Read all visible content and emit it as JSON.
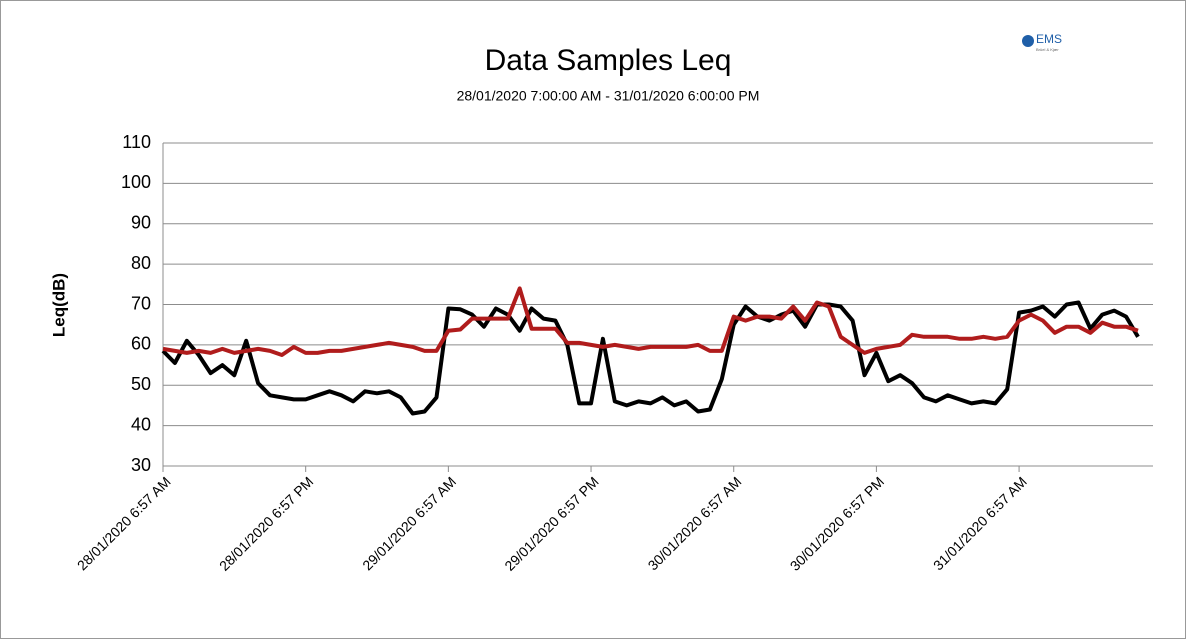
{
  "chart_data": {
    "type": "line",
    "title": "Data Samples Leq",
    "subtitle": "28/01/2020 7:00:00 AM - 31/01/2020 6:00:00 PM",
    "logo": "EMS",
    "logo_sub": "Brüel & Kjær",
    "y_label": "Leq(dB)",
    "categories": [
      "28/01/2020 6:57 AM",
      null,
      null,
      null,
      null,
      null,
      null,
      null,
      null,
      null,
      null,
      null,
      "28/01/2020 6:57 PM",
      null,
      null,
      null,
      null,
      null,
      null,
      null,
      null,
      null,
      null,
      null,
      "29/01/2020 6:57 AM",
      null,
      null,
      null,
      null,
      null,
      null,
      null,
      null,
      null,
      null,
      null,
      "29/01/2020 6:57 PM",
      null,
      null,
      null,
      null,
      null,
      null,
      null,
      null,
      null,
      null,
      null,
      "30/01/2020 6:57 AM",
      null,
      null,
      null,
      null,
      null,
      null,
      null,
      null,
      null,
      null,
      null,
      "30/01/2020 6:57 PM",
      null,
      null,
      null,
      null,
      null,
      null,
      null,
      null,
      null,
      null,
      null,
      "31/01/2020 6:57 AM",
      null,
      null,
      null,
      null,
      null,
      null,
      null,
      null,
      null,
      null
    ],
    "series": [
      {
        "color": "#000000",
        "values": [
          58.5,
          55.5,
          61,
          57.5,
          53,
          55,
          52.5,
          61,
          50.5,
          47.5,
          47,
          46.5,
          46.5,
          47.5,
          48.5,
          47.5,
          46,
          48.5,
          48,
          48.5,
          47,
          43,
          43.5,
          47,
          69,
          68.8,
          67.5,
          64.5,
          69,
          67.5,
          63.5,
          69,
          66.5,
          66,
          60,
          45.5,
          45.5,
          61.5,
          46,
          45,
          46,
          45.5,
          47,
          45,
          46,
          43.5,
          44,
          51.5,
          65,
          69.5,
          67,
          66,
          67.5,
          68.5,
          64.5,
          70,
          70,
          69.5,
          66,
          52.5,
          58,
          51,
          52.5,
          50.5,
          47,
          46,
          47.5,
          46.5,
          45.5,
          46,
          45.5,
          49,
          68,
          68.5,
          69.5,
          67,
          70,
          70.5,
          64,
          67.5,
          68.5,
          67,
          62
        ]
      },
      {
        "color": "#b01c1c",
        "values": [
          59,
          58.5,
          58,
          58.5,
          58,
          59,
          58,
          58.5,
          59,
          58.5,
          57.5,
          59.5,
          58,
          58,
          58.5,
          58.5,
          59,
          59.5,
          60,
          60.5,
          60,
          59.5,
          58.5,
          58.5,
          63.5,
          63.8,
          66.5,
          66.5,
          66.5,
          66.5,
          74,
          64,
          64,
          64,
          60.5,
          60.5,
          60,
          59.5,
          60,
          59.5,
          59,
          59.5,
          59.5,
          59.5,
          59.5,
          60,
          58.5,
          58.5,
          67,
          66,
          67,
          67,
          66.5,
          69.5,
          66,
          70.5,
          69.5,
          62,
          60,
          58,
          59,
          59.5,
          60,
          62.5,
          62,
          62,
          62,
          61.5,
          61.5,
          62,
          61.5,
          62,
          66,
          67.5,
          66,
          63,
          64.5,
          64.5,
          63,
          65.5,
          64.5,
          64.5,
          63.5
        ]
      }
    ],
    "ylim": [
      30,
      110
    ],
    "yticks": [
      30,
      40,
      50,
      60,
      70,
      80,
      90,
      100,
      110
    ],
    "grid": true
  }
}
